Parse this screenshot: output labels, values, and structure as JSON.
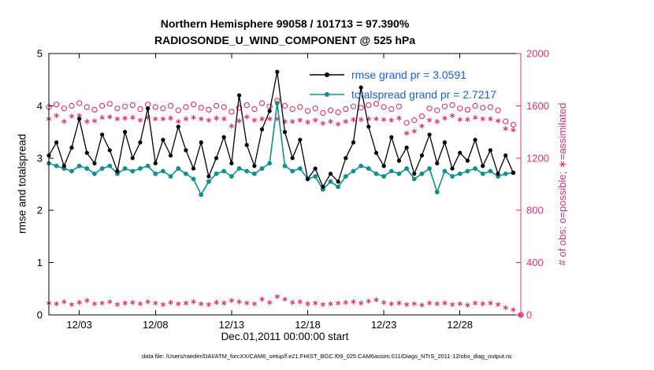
{
  "figure": {
    "title_line1": "Northern Hemisphere 99058 / 101713 = 97.390%",
    "title_line2": "RADIOSONDE_U_WIND_COMPONENT @ 525 hPa",
    "xlabel": "Dec.01,2011 00:00:00 start",
    "ylabel_left": "rmse and totalspread",
    "ylabel_right": "# of obs: o=possible; ∗=assimilated",
    "caption": "data file: /Users/raeder/DAI/ATM_forcXX/CAM6_setup/f.e21.FHIST_BGC.f09_025.CAM6assim.011/Diags_NTrS_2011-12/obs_diag_output.nc"
  },
  "legend": {
    "rmse_label": "rmse grand pr = 3.0591",
    "totalspread_label": "totalspread grand pr = 2.7217"
  },
  "colors": {
    "rmse": "#000000",
    "totalspread": "#0f8f8f",
    "obs": "#dc3069",
    "legend_text": "#1a5fd8",
    "axis": "#000000"
  },
  "chart_data": {
    "type": "line",
    "title": "Northern Hemisphere 99058 / 101713 = 97.390% | RADIOSONDE_U_WIND_COMPONENT @ 525 hPa",
    "xlabel": "Dec.01,2011 00:00:00 start",
    "ylabel_left": "rmse and totalspread",
    "ylabel_right": "# of obs: o=possible; ∗=assimilated",
    "grid": false,
    "legend_position": "top-center-inside",
    "xlim": [
      0,
      31
    ],
    "x_step": 0.5,
    "xticks": [
      {
        "day": 2,
        "label": "12/03"
      },
      {
        "day": 7,
        "label": "12/08"
      },
      {
        "day": 12,
        "label": "12/13"
      },
      {
        "day": 17,
        "label": "12/18"
      },
      {
        "day": 22,
        "label": "12/23"
      },
      {
        "day": 27,
        "label": "12/28"
      }
    ],
    "ylim_left": [
      0,
      5
    ],
    "yticks_left": [
      0,
      1,
      2,
      3,
      4,
      5
    ],
    "ylim_right": [
      0,
      2000
    ],
    "yticks_right": [
      0,
      400,
      800,
      1200,
      1600,
      2000
    ],
    "series": [
      {
        "name": "possible",
        "axis": "right",
        "color": "#dc3069",
        "marker": "circle",
        "line": false,
        "values": [
          1590,
          1610,
          1580,
          1600,
          1620,
          1590,
          1570,
          1600,
          1615,
          1580,
          1595,
          1605,
          1575,
          1610,
          1590,
          1580,
          1600,
          1565,
          1590,
          1610,
          1585,
          1570,
          1600,
          1590,
          1555,
          1585,
          1605,
          1575,
          1620,
          1595,
          1640,
          1600,
          1575,
          1590,
          1560,
          1580,
          1545,
          1565,
          1550,
          1575,
          1595,
          1585,
          1605,
          1615,
          1590,
          1575,
          1595,
          1470,
          1490,
          1520,
          1580,
          1565,
          1595,
          1605,
          1580,
          1570,
          1600,
          1585,
          1590,
          1565,
          1480,
          1455,
          0
        ]
      },
      {
        "name": "assimilated",
        "axis": "right",
        "color": "#dc3069",
        "marker": "asterisk",
        "line": false,
        "values": [
          1500,
          1525,
          1480,
          1520,
          1525,
          1480,
          1485,
          1510,
          1515,
          1500,
          1505,
          1510,
          1490,
          1510,
          1500,
          1500,
          1505,
          1480,
          1500,
          1510,
          1500,
          1490,
          1505,
          1500,
          1445,
          1485,
          1515,
          1490,
          1500,
          1500,
          1500,
          1480,
          1480,
          1490,
          1475,
          1490,
          1465,
          1480,
          1460,
          1480,
          1495,
          1495,
          1500,
          1500,
          1495,
          1490,
          1505,
          1390,
          1405,
          1445,
          1490,
          1480,
          1505,
          1525,
          1495,
          1495,
          1510,
          1500,
          1500,
          1485,
          1425,
          1415,
          0
        ]
      },
      {
        "name": "count-low-band",
        "axis": "right",
        "color": "#dc3069",
        "marker": "asterisk",
        "line": false,
        "values": [
          90,
          85,
          100,
          80,
          95,
          110,
          85,
          90,
          100,
          80,
          90,
          95,
          85,
          100,
          90,
          80,
          95,
          85,
          90,
          100,
          85,
          80,
          95,
          90,
          110,
          100,
          90,
          85,
          120,
          95,
          140,
          120,
          95,
          100,
          85,
          90,
          80,
          85,
          90,
          95,
          100,
          90,
          105,
          115,
          95,
          85,
          90,
          80,
          85,
          75,
          90,
          85,
          90,
          80,
          85,
          75,
          90,
          85,
          90,
          80,
          55,
          40,
          0
        ]
      },
      {
        "name": "totalspread",
        "axis": "left",
        "color": "#0f8f8f",
        "marker": "dot",
        "line": true,
        "line_width": 1.6,
        "values": [
          2.9,
          2.85,
          2.8,
          2.75,
          2.85,
          2.8,
          2.7,
          2.8,
          2.85,
          2.7,
          2.8,
          2.75,
          2.8,
          2.85,
          2.7,
          2.75,
          2.65,
          2.8,
          2.7,
          2.6,
          2.3,
          2.55,
          2.7,
          2.75,
          2.65,
          2.8,
          2.75,
          2.7,
          2.8,
          2.9,
          4.05,
          2.85,
          2.75,
          2.8,
          2.6,
          2.65,
          2.4,
          2.55,
          2.45,
          2.65,
          2.75,
          2.85,
          2.8,
          2.7,
          2.65,
          2.75,
          2.7,
          2.8,
          2.6,
          2.7,
          2.8,
          2.35,
          2.75,
          2.65,
          2.7,
          2.75,
          2.8,
          2.7,
          2.75,
          2.65,
          2.7,
          2.72
        ]
      },
      {
        "name": "rmse",
        "axis": "left",
        "color": "#000000",
        "marker": "dot",
        "line": true,
        "line_width": 1.3,
        "values": [
          3.05,
          3.3,
          2.85,
          3.2,
          3.75,
          3.1,
          2.9,
          3.45,
          3.15,
          2.75,
          3.5,
          3.0,
          3.3,
          3.95,
          2.9,
          3.35,
          3.05,
          3.6,
          3.15,
          2.8,
          3.3,
          2.65,
          3.0,
          3.4,
          2.9,
          4.2,
          3.25,
          2.85,
          3.55,
          3.9,
          4.65,
          3.5,
          3.0,
          3.35,
          2.6,
          2.8,
          2.45,
          2.7,
          2.55,
          3.0,
          3.3,
          4.35,
          3.6,
          3.1,
          2.85,
          3.4,
          2.95,
          3.2,
          2.7,
          3.05,
          3.45,
          2.9,
          3.3,
          2.8,
          3.1,
          2.95,
          3.35,
          2.85,
          3.15,
          2.7,
          3.05,
          2.72
        ]
      }
    ]
  }
}
